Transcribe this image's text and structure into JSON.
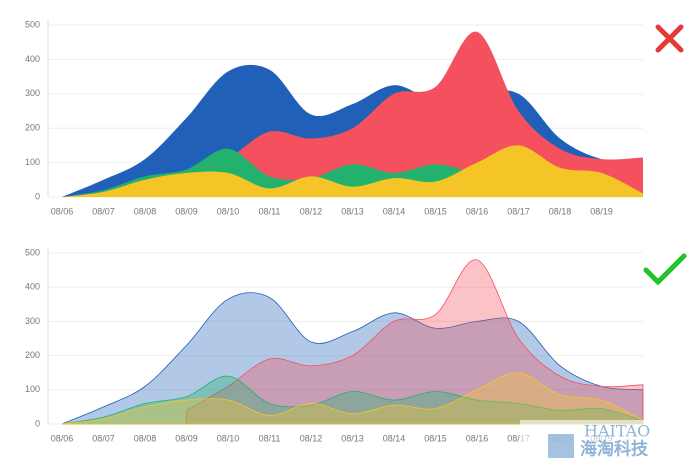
{
  "chart_data": [
    {
      "type": "area",
      "opacity": 1,
      "categories": [
        "08/06",
        "08/07",
        "08/08",
        "08/09",
        "08/10",
        "08/11",
        "08/12",
        "08/13",
        "08/14",
        "08/15",
        "08/16",
        "08/17",
        "08/18",
        "08/19",
        null
      ],
      "ylim": [
        0,
        500
      ],
      "yticks": [
        0,
        100,
        200,
        300,
        400,
        500
      ],
      "grid": true,
      "series": [
        {
          "color": "#2060b8",
          "values": [
            0,
            50,
            110,
            230,
            365,
            370,
            240,
            270,
            325,
            280,
            300,
            300,
            170,
            110,
            100
          ]
        },
        {
          "color": "#f4505e",
          "values": [
            null,
            null,
            null,
            40,
            110,
            190,
            170,
            200,
            300,
            320,
            480,
            250,
            140,
            110,
            115
          ]
        },
        {
          "color": "#23b26d",
          "values": [
            0,
            20,
            60,
            80,
            140,
            60,
            55,
            95,
            70,
            95,
            70,
            60,
            40,
            45,
            10
          ]
        },
        {
          "color": "#f5c527",
          "values": [
            0,
            15,
            50,
            70,
            70,
            25,
            60,
            30,
            55,
            45,
            100,
            150,
            85,
            70,
            10
          ]
        }
      ]
    },
    {
      "type": "area",
      "opacity": 0.35,
      "categories": [
        "08/06",
        "08/07",
        "08/08",
        "08/09",
        "08/10",
        "08/11",
        "08/12",
        "08/13",
        "08/14",
        "08/15",
        "08/16",
        "08/17",
        "08/18",
        "08/19",
        null
      ],
      "ylim": [
        0,
        500
      ],
      "yticks": [
        0,
        100,
        200,
        300,
        400,
        500
      ],
      "grid": true,
      "series": [
        {
          "color": "#2060b8",
          "values": [
            0,
            50,
            110,
            230,
            365,
            370,
            240,
            270,
            325,
            280,
            300,
            300,
            170,
            110,
            100
          ]
        },
        {
          "color": "#f4505e",
          "values": [
            null,
            null,
            null,
            40,
            110,
            190,
            170,
            200,
            300,
            320,
            480,
            250,
            140,
            110,
            115
          ]
        },
        {
          "color": "#23b26d",
          "values": [
            0,
            20,
            60,
            80,
            140,
            60,
            55,
            95,
            70,
            95,
            70,
            60,
            40,
            45,
            10
          ]
        },
        {
          "color": "#f5c527",
          "values": [
            0,
            15,
            50,
            70,
            70,
            25,
            60,
            30,
            55,
            45,
            100,
            150,
            85,
            70,
            10
          ]
        }
      ]
    }
  ],
  "watermark": {
    "latin": "HAITAO",
    "chinese": "海淘科技"
  }
}
